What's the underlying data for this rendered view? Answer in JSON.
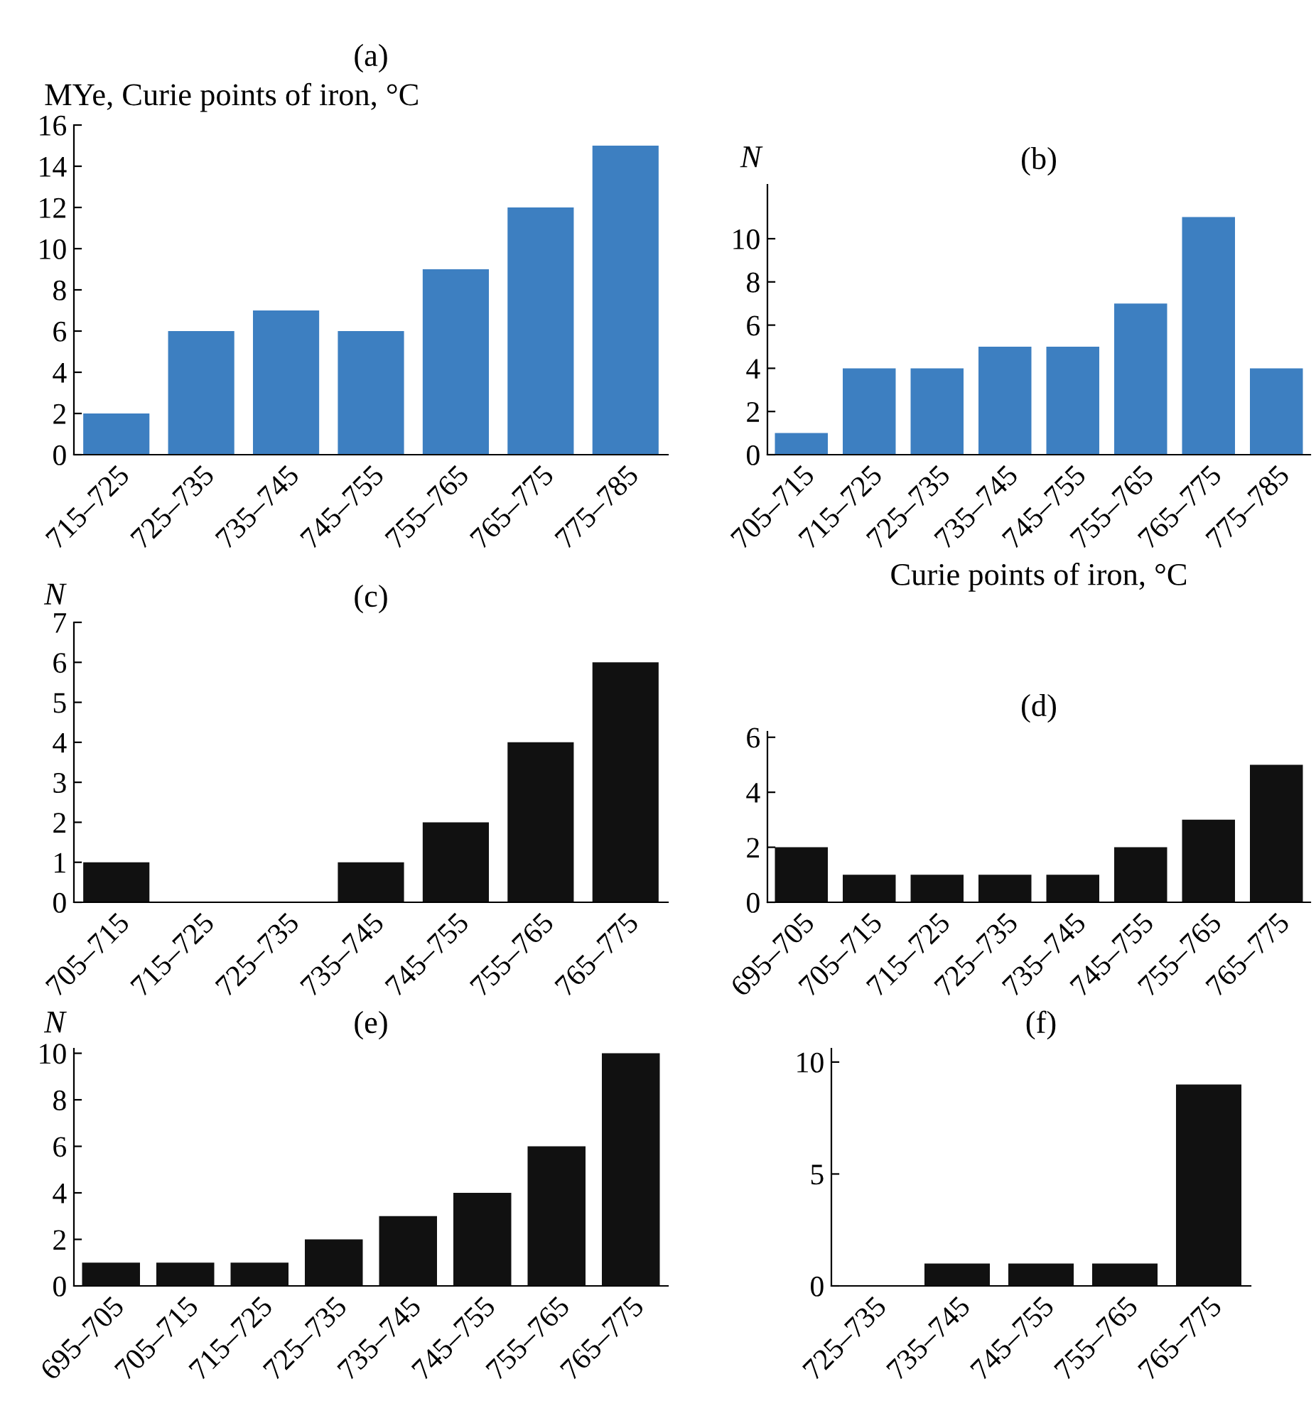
{
  "chart_data": [
    {
      "type": "bar",
      "title": "(a)",
      "ylabel": "MYe, Curie points of iron, °C",
      "categories": [
        "715–725",
        "725–735",
        "735–745",
        "745–755",
        "755–765",
        "765–775",
        "775–785"
      ],
      "values": [
        2,
        6,
        7,
        6,
        9,
        12,
        15
      ],
      "color": "#3d7fc1",
      "ylim": [
        0,
        16
      ],
      "yticks": [
        0,
        2,
        4,
        6,
        8,
        10,
        12,
        14,
        16
      ],
      "grid": false
    },
    {
      "type": "bar",
      "title": "(b)",
      "ylabel": "N",
      "xlabel": "Curie points of iron, °C",
      "categories": [
        "705–715",
        "715–725",
        "725–735",
        "735–745",
        "745–755",
        "755–765",
        "765–775",
        "775–785"
      ],
      "values": [
        1,
        4,
        4,
        5,
        5,
        7,
        11,
        4
      ],
      "color": "#3d7fc1",
      "ylim": [
        0,
        12.5
      ],
      "yticks": [
        0,
        2,
        4,
        6,
        8,
        10
      ],
      "grid": false
    },
    {
      "type": "bar",
      "title": "(c)",
      "ylabel": "N",
      "categories": [
        "705–715",
        "715–725",
        "725–735",
        "735–745",
        "745–755",
        "755–765",
        "765–775"
      ],
      "values": [
        1,
        0,
        0,
        1,
        2,
        4,
        6
      ],
      "color": "#111111",
      "ylim": [
        0,
        7
      ],
      "yticks": [
        0,
        1,
        2,
        3,
        4,
        5,
        6,
        7
      ],
      "grid": false
    },
    {
      "type": "bar",
      "title": "(d)",
      "categories": [
        "695–705",
        "705–715",
        "715–725",
        "725–735",
        "735–745",
        "745–755",
        "755–765",
        "765–775"
      ],
      "values": [
        2,
        1,
        1,
        1,
        1,
        2,
        3,
        5
      ],
      "color": "#111111",
      "ylim": [
        0,
        6.2
      ],
      "yticks": [
        0,
        2,
        4,
        6
      ],
      "grid": false
    },
    {
      "type": "bar",
      "title": "(e)",
      "ylabel": "N",
      "categories": [
        "695–705",
        "705–715",
        "715–725",
        "725–735",
        "735–745",
        "745–755",
        "755–765",
        "765–775"
      ],
      "values": [
        1,
        1,
        1,
        2,
        3,
        4,
        6,
        10
      ],
      "color": "#111111",
      "ylim": [
        0,
        10.2
      ],
      "yticks": [
        0,
        2,
        4,
        6,
        8,
        10
      ],
      "grid": false
    },
    {
      "type": "bar",
      "title": "(f)",
      "categories": [
        "725–735",
        "735–745",
        "745–755",
        "755–765",
        "765–775"
      ],
      "values": [
        0,
        1,
        1,
        1,
        9
      ],
      "color": "#111111",
      "ylim": [
        0,
        10.6
      ],
      "yticks": [
        0,
        5,
        10
      ],
      "grid": false
    }
  ]
}
